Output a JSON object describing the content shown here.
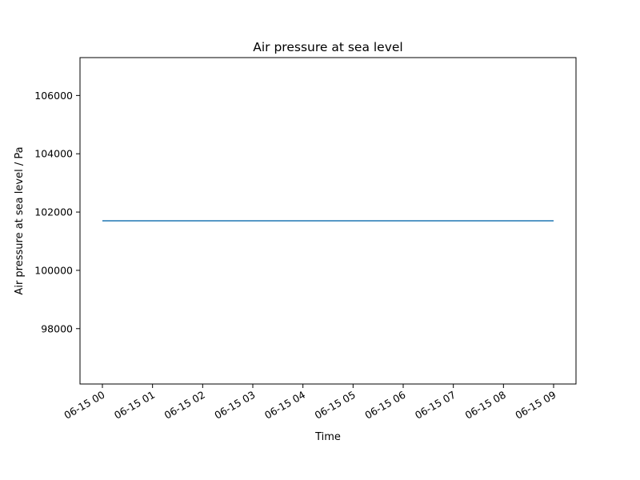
{
  "chart_data": {
    "type": "line",
    "title": "Air pressure at sea level",
    "xlabel": "Time",
    "ylabel": "Air pressure at sea level / Pa",
    "x_ticks": [
      "06-15 00",
      "06-15 01",
      "06-15 02",
      "06-15 03",
      "06-15 04",
      "06-15 05",
      "06-15 06",
      "06-15 07",
      "06-15 08",
      "06-15 09"
    ],
    "y_ticks": [
      98000,
      100000,
      102000,
      104000,
      106000
    ],
    "xlim": [
      "06-15 00",
      "06-15 09"
    ],
    "ylim": [
      96100,
      107300
    ],
    "grid": false,
    "series": [
      {
        "x": [
          "06-15 00",
          "06-15 09"
        ],
        "y": [
          101700,
          101700
        ],
        "color": "#1f77b4"
      }
    ]
  }
}
